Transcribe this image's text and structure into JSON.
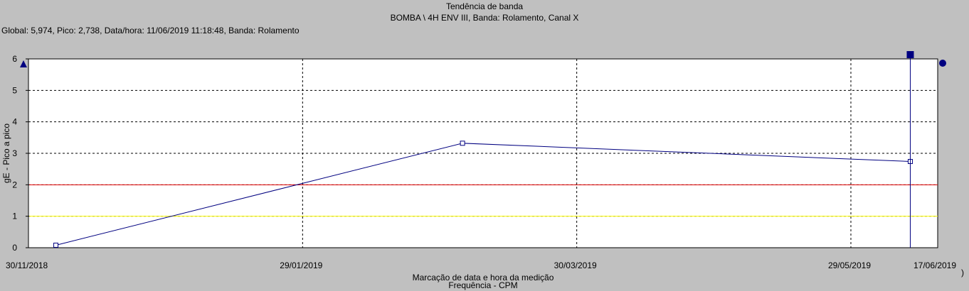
{
  "header": {
    "title": "Tendência de banda",
    "subtitle": "BOMBA \\ 4H ENV III, Banda: Rolamento, Canal X",
    "info": "Global: 5,974, Pico: 2,738,  Data/hora: 11/06/2019 11:18:48, Banda: Rolamento"
  },
  "chart_data": {
    "type": "line",
    "title": "Tendência de banda",
    "subtitle": "BOMBA \\ 4H ENV III, Banda: Rolamento, Canal X",
    "xlabel": "Marcação de data e hora da medição",
    "xlabel_hidden": "Frequência - CPM",
    "ylabel": "gE - Pico a pico",
    "xaxis": {
      "type": "date",
      "min": "2018-11-30",
      "max": "2019-06-17"
    },
    "ylim": [
      0,
      6
    ],
    "yticks": [
      "0",
      "1",
      "2",
      "3",
      "4",
      "5",
      "6"
    ],
    "xticks": [
      {
        "date": "2018-11-30",
        "label": "30/11/2018"
      },
      {
        "date": "2019-01-29",
        "label": "29/01/2019"
      },
      {
        "date": "2019-03-30",
        "label": "30/03/2019"
      },
      {
        "date": "2019-05-29",
        "label": "29/05/2019"
      },
      {
        "date": "2019-06-17",
        "label": "17/06/2019"
      }
    ],
    "grid": true,
    "series": [
      {
        "color": "#000080",
        "points": [
          {
            "x": "2018-12-06",
            "y": 0.08
          },
          {
            "x": "2019-03-05",
            "y": 3.32
          },
          {
            "x": "2019-06-11",
            "y": 2.74
          }
        ]
      }
    ],
    "thresholds": [
      {
        "value": 2,
        "color": "#e00000"
      },
      {
        "value": 1,
        "color": "#ffff00"
      }
    ],
    "cursor": {
      "x": "2019-06-11",
      "color": "#000080"
    },
    "cursor_glyph": ")"
  }
}
